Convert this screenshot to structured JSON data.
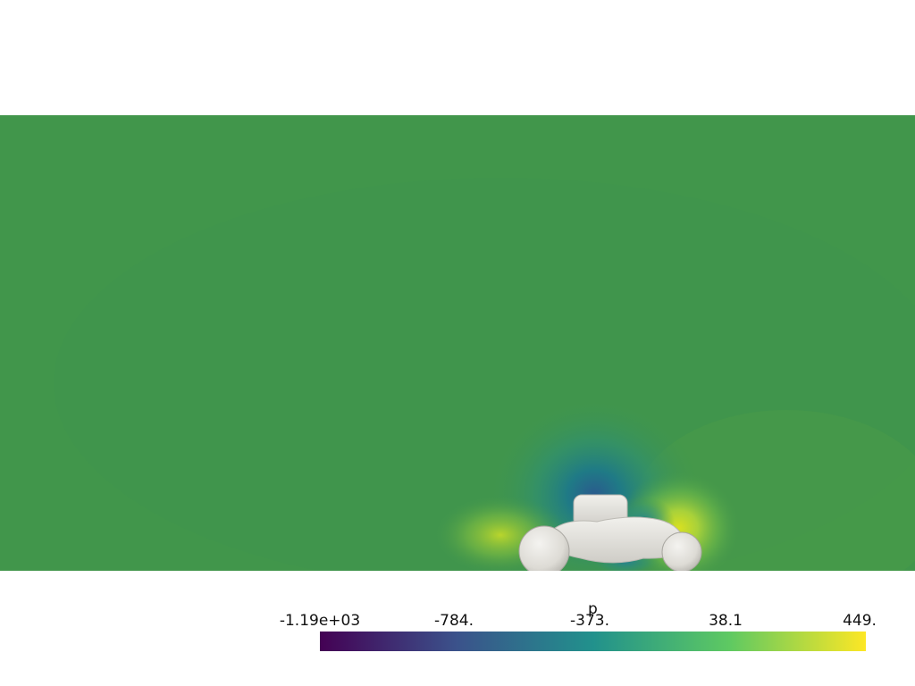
{
  "scene": {
    "field_color": "#41964b",
    "object_color": "#e6e4df"
  },
  "colorbar": {
    "title": "p",
    "colormap": "viridis",
    "range": [
      -1190,
      449
    ],
    "ticks": [
      "-1.19e+03",
      "-784.",
      "-373.",
      "38.1",
      "449."
    ],
    "stops": [
      "#440154",
      "#3b528b",
      "#21918c",
      "#5ec962",
      "#fde725"
    ]
  }
}
